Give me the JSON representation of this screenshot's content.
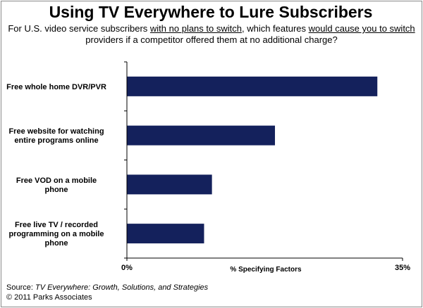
{
  "colors": {
    "bar": "#14215c",
    "axis": "#000000",
    "border": "#8a8a8a"
  },
  "header": {
    "title": "Using TV Everywhere to Lure Subscribers",
    "subtitle_parts": [
      {
        "text": "For U.S. video service subscribers ",
        "u": false
      },
      {
        "text": "with no plans to switch",
        "u": true
      },
      {
        "text": ", which features ",
        "u": false
      },
      {
        "text": "would cause you to switch",
        "u": true
      },
      {
        "text": " providers if a competitor offered them at no additional charge?",
        "u": false
      }
    ]
  },
  "chart_data": {
    "type": "bar",
    "orientation": "horizontal",
    "categories": [
      [
        "Free whole home DVR/PVR"
      ],
      [
        "Free website for watching",
        "entire programs online"
      ],
      [
        "Free VOD on a mobile",
        "phone"
      ],
      [
        "Free live TV / recorded",
        "programming on a mobile",
        "phone"
      ]
    ],
    "values": [
      31.8,
      18.8,
      10.8,
      9.8
    ],
    "xlim": [
      0,
      35
    ],
    "tick_labels": [
      "0%",
      "35%"
    ],
    "xlabel": "% Specifying Factors",
    "grid": false,
    "legend": "none"
  },
  "footer": {
    "source_prefix": "Source: ",
    "source_title": "TV Everywhere: Growth, Solutions, and Strategies",
    "copyright": "© 2011 Parks Associates"
  }
}
